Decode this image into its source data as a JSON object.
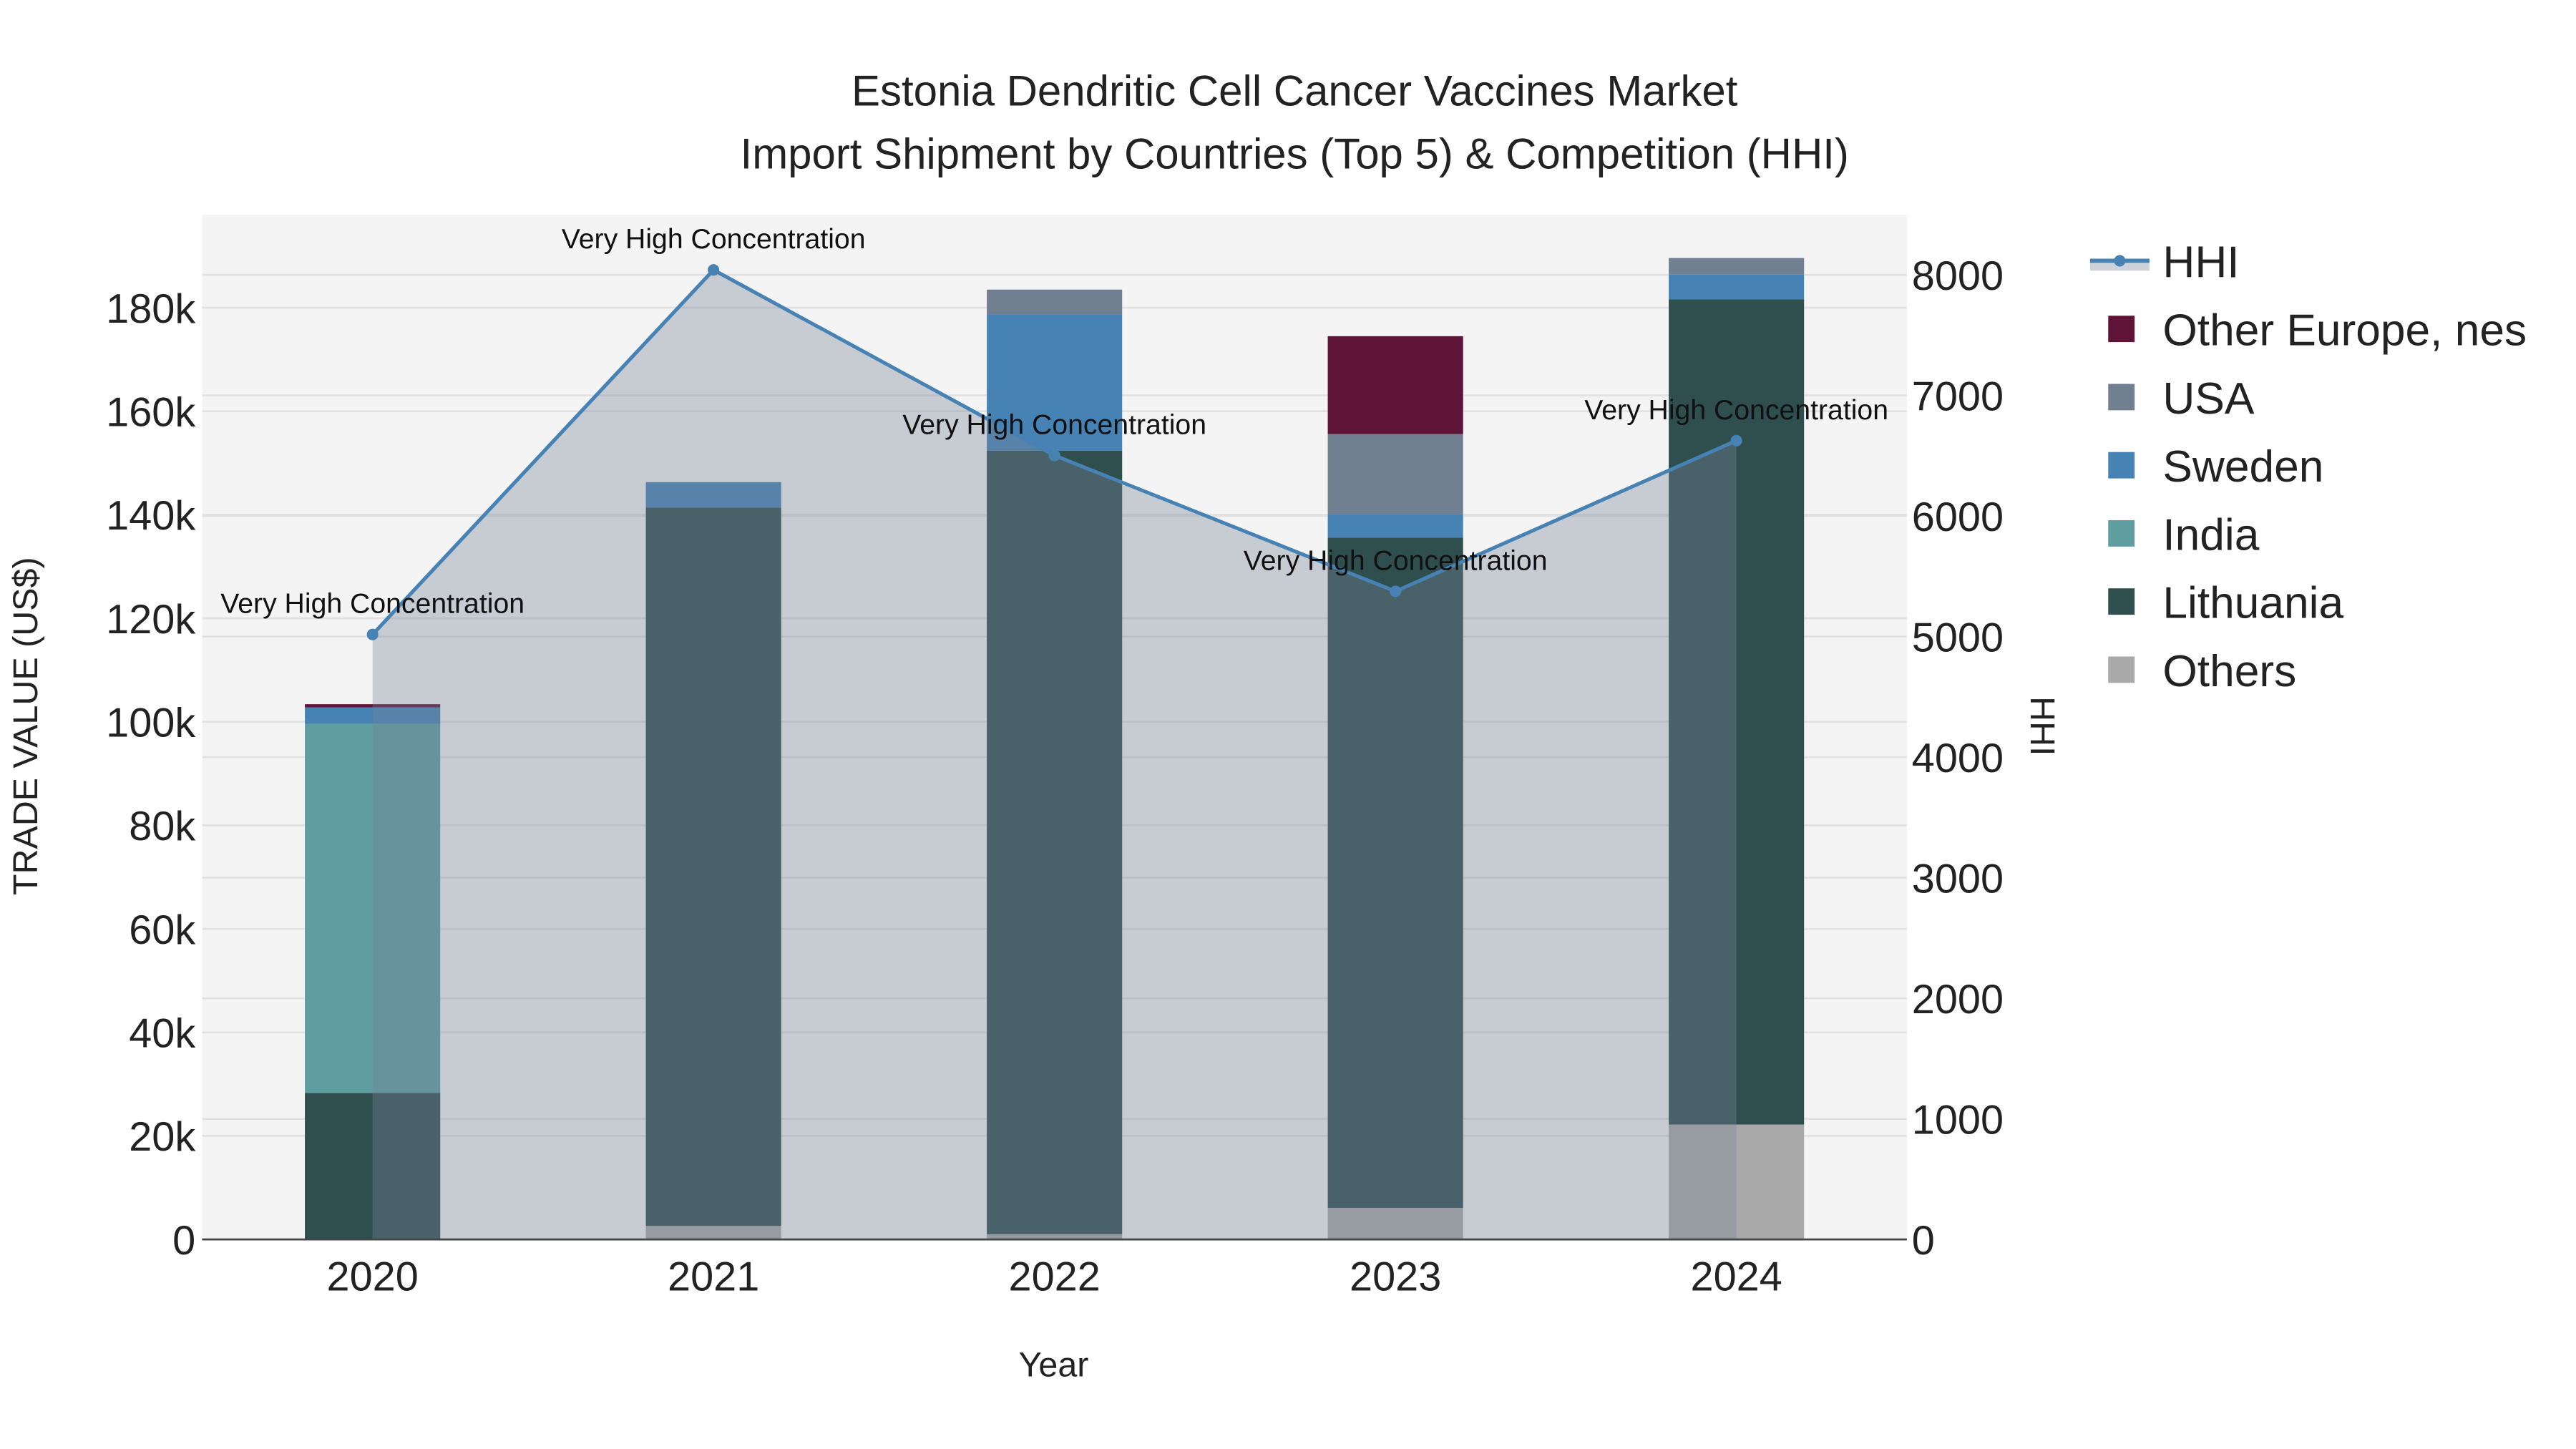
{
  "chart_data": {
    "type": "bar",
    "title_line1": "Estonia Dendritic Cell Cancer Vaccines Market",
    "title_line2": "Import Shipment by Countries (Top 5) & Competition (HHI)",
    "xlabel": "Year",
    "ylabel": "TRADE VALUE (US$)",
    "y2label": "HHI",
    "categories": [
      "2020",
      "2021",
      "2022",
      "2023",
      "2024"
    ],
    "ylim": [
      0,
      198000
    ],
    "y2lim": [
      0,
      8500
    ],
    "yticks": [
      0,
      20000,
      40000,
      60000,
      80000,
      100000,
      120000,
      140000,
      160000,
      180000
    ],
    "ytick_labels": [
      "0",
      "20k",
      "40k",
      "60k",
      "80k",
      "100k",
      "120k",
      "140k",
      "160k",
      "180k"
    ],
    "y2ticks": [
      0,
      1000,
      2000,
      3000,
      4000,
      5000,
      6000,
      7000,
      8000
    ],
    "y2tick_labels": [
      "0",
      "1000",
      "2000",
      "3000",
      "4000",
      "5000",
      "6000",
      "7000",
      "8000"
    ],
    "stacked": true,
    "series": [
      {
        "name": "Others",
        "color": "#a9a9a9",
        "values": [
          0,
          2600,
          1000,
          6100,
          22200
        ]
      },
      {
        "name": "Lithuania",
        "color": "#2f4f4f",
        "values": [
          28300,
          138800,
          151400,
          129500,
          159400
        ]
      },
      {
        "name": "India",
        "color": "#5f9ea0",
        "values": [
          71300,
          0,
          0,
          0,
          0
        ]
      },
      {
        "name": "Sweden",
        "color": "#4682b4",
        "values": [
          3200,
          4900,
          26300,
          4500,
          4800
        ]
      },
      {
        "name": "USA",
        "color": "#708090",
        "values": [
          0,
          0,
          4800,
          15500,
          3200
        ]
      },
      {
        "name": "Other Europe, nes",
        "color": "#5f1336",
        "values": [
          600,
          0,
          0,
          18900,
          0
        ]
      }
    ],
    "hhi": {
      "name": "HHI",
      "color": "#4682b4",
      "values": [
        5017,
        8041,
        6502,
        5375,
        6625
      ],
      "annotations": [
        "Very High Concentration",
        "Very High Concentration",
        "Very High Concentration",
        "Very High Concentration",
        "Very High Concentration"
      ]
    },
    "legend": [
      "HHI",
      "Other Europe, nes",
      "USA",
      "Sweden",
      "India",
      "Lithuania",
      "Others"
    ],
    "legend_placement": "right",
    "grid": true
  }
}
